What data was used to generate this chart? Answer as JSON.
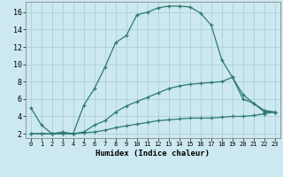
{
  "xlabel": "Humidex (Indice chaleur)",
  "bg_color": "#cce8f0",
  "grid_color": "#aecfdb",
  "line_color": "#2d7a6e",
  "x_ticks": [
    0,
    1,
    2,
    3,
    4,
    5,
    6,
    7,
    8,
    9,
    10,
    11,
    12,
    13,
    14,
    15,
    16,
    17,
    18,
    19,
    20,
    21,
    22,
    23
  ],
  "y_ticks": [
    2,
    4,
    6,
    8,
    10,
    12,
    14,
    16
  ],
  "ylim": [
    1.5,
    17.2
  ],
  "xlim": [
    -0.5,
    23.5
  ],
  "line1_x": [
    0,
    1,
    2,
    3,
    4,
    5,
    6,
    7,
    8,
    9,
    10,
    11,
    12,
    13,
    14,
    15,
    16,
    17,
    18,
    19,
    20,
    21,
    22,
    23
  ],
  "line1_y": [
    5.0,
    3.0,
    2.0,
    2.2,
    2.0,
    5.3,
    7.2,
    9.7,
    12.5,
    13.3,
    15.7,
    16.0,
    16.5,
    16.7,
    16.7,
    16.6,
    15.9,
    14.5,
    10.5,
    8.5,
    6.0,
    5.5,
    4.5,
    4.5
  ],
  "line2_x": [
    0,
    1,
    2,
    3,
    4,
    5,
    6,
    7,
    8,
    9,
    10,
    11,
    12,
    13,
    14,
    15,
    16,
    17,
    18,
    19,
    20,
    21,
    22,
    23
  ],
  "line2_y": [
    2.0,
    2.0,
    2.0,
    2.0,
    2.0,
    2.2,
    3.0,
    3.5,
    4.5,
    5.2,
    5.7,
    6.2,
    6.7,
    7.2,
    7.5,
    7.7,
    7.8,
    7.9,
    8.0,
    8.5,
    6.5,
    5.5,
    4.7,
    4.5
  ],
  "line3_x": [
    0,
    1,
    2,
    3,
    4,
    5,
    6,
    7,
    8,
    9,
    10,
    11,
    12,
    13,
    14,
    15,
    16,
    17,
    18,
    19,
    20,
    21,
    22,
    23
  ],
  "line3_y": [
    2.0,
    2.0,
    2.0,
    2.0,
    2.0,
    2.1,
    2.2,
    2.4,
    2.7,
    2.9,
    3.1,
    3.3,
    3.5,
    3.6,
    3.7,
    3.8,
    3.8,
    3.8,
    3.9,
    4.0,
    4.0,
    4.1,
    4.3,
    4.5
  ],
  "tick_fontsize_x": 5.0,
  "tick_fontsize_y": 6.0,
  "xlabel_fontsize": 6.5
}
